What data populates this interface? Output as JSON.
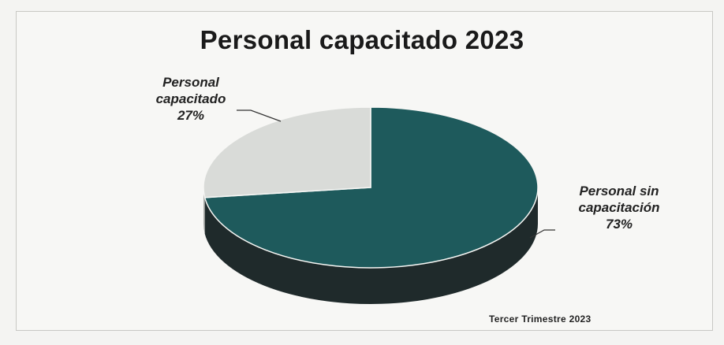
{
  "chart_data": {
    "type": "pie",
    "title": "Personal capacitado 2023",
    "slices": [
      {
        "name": "Personal sin capacitación",
        "label_lines": [
          "Personal sin",
          "capacitación"
        ],
        "value_label": "73%",
        "value": 73,
        "color": "#1e5a5c",
        "side_color": "#1f2a2b"
      },
      {
        "name": "Personal capacitado",
        "label_lines": [
          "Personal",
          "capacitado"
        ],
        "value_label": "27%",
        "value": 27,
        "color": "#d9dbd8",
        "side_color": "#a9aba8"
      }
    ],
    "footer": "Tercer Trimestre 2023"
  }
}
